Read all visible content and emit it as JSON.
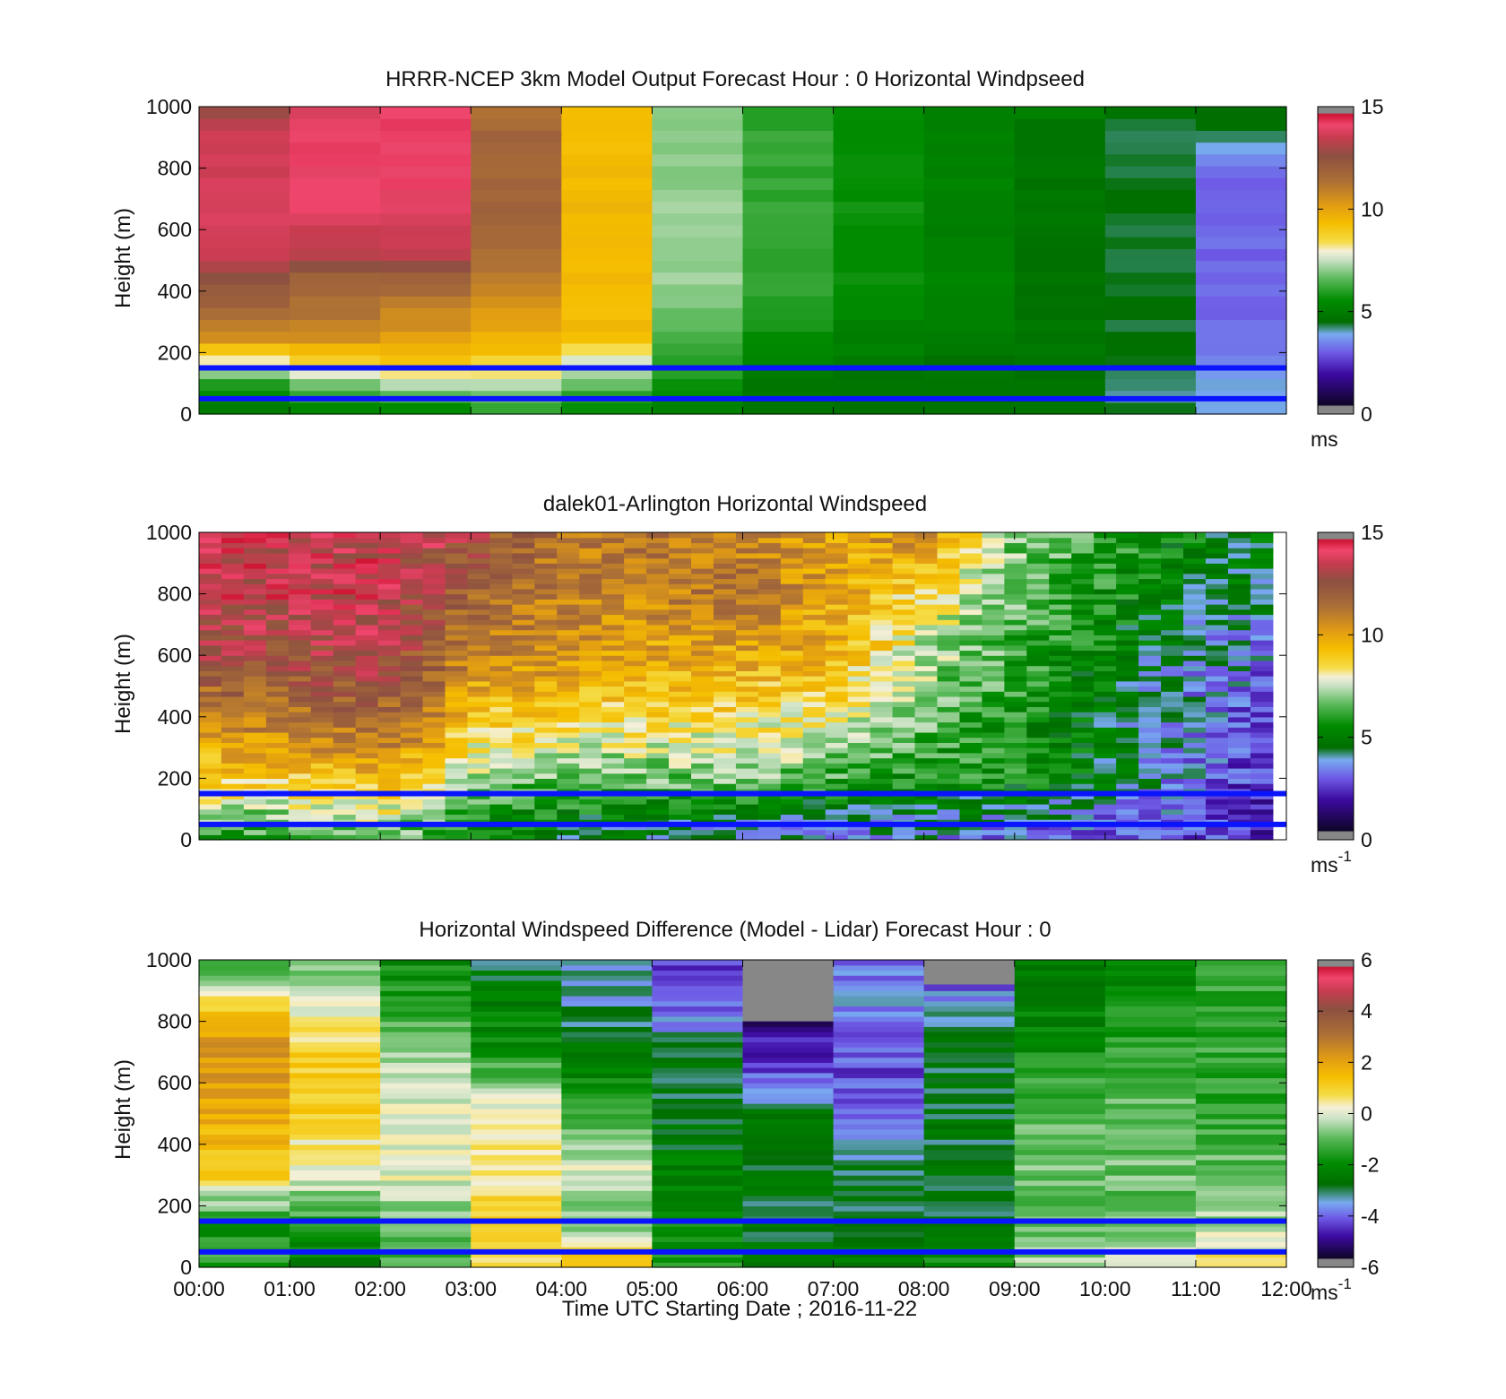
{
  "chart_data": [
    {
      "type": "heatmap",
      "title": "HRRR-NCEP 3km Model Output   Forecast Hour : 0 Horizontal Windpseed",
      "ylabel": "Height (m)",
      "ylim": [
        0,
        1000
      ],
      "y_ticks": [
        "0",
        "200",
        "400",
        "600",
        "800",
        "1000"
      ],
      "colorbar": {
        "range": [
          0,
          15
        ],
        "ticks": [
          "0",
          "5",
          "10",
          "15"
        ],
        "unit_base": "ms",
        "unit_sup": ""
      },
      "reference_heights": [
        50,
        150
      ],
      "x_hours": [
        0,
        1,
        2,
        3,
        4,
        5,
        6,
        7,
        8,
        9,
        10,
        11
      ],
      "column_values": [
        [
          5,
          6,
          8.5,
          11,
          12,
          12.5,
          14,
          14,
          14,
          14,
          14,
          14,
          13
        ],
        [
          5,
          7,
          9,
          11,
          11.5,
          12,
          13.5,
          14,
          14.5,
          14.5,
          14.5,
          14.5,
          14
        ],
        [
          5.5,
          7.5,
          9.5,
          10.5,
          11,
          12,
          13.5,
          14,
          14.2,
          14.5,
          14.5,
          14.5,
          14.5
        ],
        [
          6,
          7.5,
          9,
          10,
          10.5,
          11,
          11.5,
          12,
          12,
          12,
          12,
          12,
          11.5
        ],
        [
          5.5,
          6.5,
          8,
          9.5,
          9.5,
          9.5,
          9.5,
          9.5,
          9.5,
          9.5,
          9.5,
          9.5,
          9.5
        ],
        [
          5,
          5.5,
          6,
          6.5,
          6.8,
          7,
          7,
          7,
          7,
          7,
          7,
          7,
          7
        ],
        [
          4.5,
          4.5,
          5,
          5.5,
          5.8,
          6,
          6,
          6,
          6,
          6,
          6,
          6,
          6
        ],
        [
          4.5,
          4.5,
          4.8,
          5,
          5.2,
          5.5,
          5.5,
          5.5,
          5.5,
          5.5,
          5.5,
          5.5,
          5.5
        ],
        [
          4.5,
          4.5,
          4.5,
          4.8,
          5,
          5,
          5,
          5,
          5,
          5,
          5,
          5,
          5
        ],
        [
          4.5,
          4.5,
          4.5,
          4.5,
          4.5,
          4.5,
          4.5,
          4.5,
          4.5,
          4.5,
          4.5,
          4.5,
          5
        ],
        [
          4,
          4,
          4.2,
          4.2,
          4.2,
          4.2,
          4.2,
          4.2,
          4.2,
          4.2,
          4.2,
          4.2,
          4.5
        ],
        [
          3.5,
          3.5,
          3.0,
          2.8,
          2.8,
          2.8,
          2.8,
          2.8,
          2.8,
          2.8,
          3.2,
          4.0,
          4.5
        ]
      ]
    },
    {
      "type": "heatmap",
      "title": "dalek01-Arlington  Horizontal Windspeed",
      "ylabel": "Height (m)",
      "ylim": [
        0,
        1000
      ],
      "y_ticks": [
        "0",
        "200",
        "400",
        "600",
        "800",
        "1000"
      ],
      "colorbar": {
        "range": [
          0,
          15
        ],
        "ticks": [
          "0",
          "5",
          "10",
          "15"
        ],
        "unit_base": "ms",
        "unit_sup": "-1"
      },
      "reference_heights": [
        50,
        150
      ],
      "data_coverage_hours": [
        0,
        11.85
      ],
      "profile_anchor_hours": [
        0,
        1,
        2,
        2.6,
        3,
        4,
        5,
        6,
        7,
        8,
        9,
        10,
        11,
        11.85
      ],
      "profile_anchor_values": [
        [
          6,
          9,
          11,
          13,
          14,
          14
        ],
        [
          6,
          9,
          11.5,
          13,
          14,
          14
        ],
        [
          7,
          9.5,
          12,
          13.5,
          14,
          14
        ],
        [
          6,
          9,
          11,
          12,
          13,
          13.5
        ],
        [
          5,
          7,
          9,
          11,
          12,
          13
        ],
        [
          4.5,
          6.5,
          9,
          10.5,
          11,
          11.5
        ],
        [
          4,
          6.5,
          8.5,
          10,
          11,
          11.5
        ],
        [
          3.5,
          7,
          8.5,
          10,
          11.5,
          11
        ],
        [
          3.5,
          6,
          8,
          9.5,
          10,
          10
        ],
        [
          3.5,
          5.5,
          6.5,
          7.5,
          8.5,
          11
        ],
        [
          3,
          5.5,
          5.5,
          6,
          6.5,
          7
        ],
        [
          2.5,
          4.5,
          4.5,
          5,
          5.5,
          6
        ],
        [
          2.5,
          3,
          3,
          3.5,
          4.5,
          5
        ],
        [
          2,
          2,
          2.5,
          3,
          4,
          4.5
        ]
      ],
      "profile_anchor_heights": [
        30,
        200,
        400,
        600,
        800,
        1000
      ]
    },
    {
      "type": "heatmap",
      "title": "Horizontal Windspeed Difference (Model - Lidar) Forecast Hour : 0",
      "xlabel": "Time UTC  Starting Date ; 2016-11-22",
      "ylabel": "Height (m)",
      "ylim": [
        0,
        1000
      ],
      "y_ticks": [
        "0",
        "200",
        "400",
        "600",
        "800",
        "1000"
      ],
      "x_ticks": [
        "00:00",
        "01:00",
        "02:00",
        "03:00",
        "04:00",
        "05:00",
        "06:00",
        "07:00",
        "08:00",
        "09:00",
        "10:00",
        "11:00",
        "12:00"
      ],
      "colorbar": {
        "range": [
          -6,
          6
        ],
        "ticks": [
          "-6",
          "-4",
          "-2",
          "0",
          "2",
          "4",
          "6"
        ],
        "unit_base": "ms",
        "unit_sup": "-1"
      },
      "reference_heights": [
        50,
        150
      ],
      "x_hours": [
        0,
        1,
        2,
        3,
        4,
        5,
        6,
        7,
        8,
        9,
        10,
        11
      ],
      "profile_anchor_heights": [
        20,
        150,
        300,
        500,
        700,
        850,
        980
      ],
      "column_values": [
        [
          -1.5,
          -2,
          1,
          2,
          2.5,
          1,
          -1.5
        ],
        [
          -2.5,
          -1.5,
          0,
          1,
          1,
          0,
          -1
        ],
        [
          -1.5,
          -1,
          0,
          0,
          -0.5,
          -1.5,
          -2
        ],
        [
          1,
          1,
          0.5,
          0.5,
          -2,
          -2.5,
          -3
        ],
        [
          1.5,
          -1,
          0,
          -1.5,
          -2.5,
          -3.5,
          -3.5
        ],
        [
          -2,
          -2,
          -2.5,
          -3,
          -3,
          -4.5,
          -4.5
        ],
        [
          -2.5,
          -3,
          -3,
          -3,
          -5,
          -5.5,
          -6
        ],
        [
          -2.5,
          -3,
          -3,
          -4.5,
          -4.5,
          -4,
          -4
        ],
        [
          -2,
          -3,
          -3,
          -3,
          -3,
          -3.5,
          -5
        ],
        [
          -0.5,
          -1,
          -1,
          -1,
          -2,
          -2.5,
          -2.5
        ],
        [
          0,
          -1,
          -1,
          -1,
          -1.5,
          -2,
          -2.5
        ],
        [
          0.5,
          -0.5,
          -1,
          -1.5,
          -1.5,
          -1.5,
          -1.5
        ]
      ],
      "gray_blocks": [
        {
          "hour_start": 6,
          "hour_end": 7,
          "height_min": 800,
          "height_max": 1000
        },
        {
          "hour_start": 8,
          "hour_end": 9,
          "height_min": 920,
          "height_max": 1000
        }
      ]
    }
  ]
}
